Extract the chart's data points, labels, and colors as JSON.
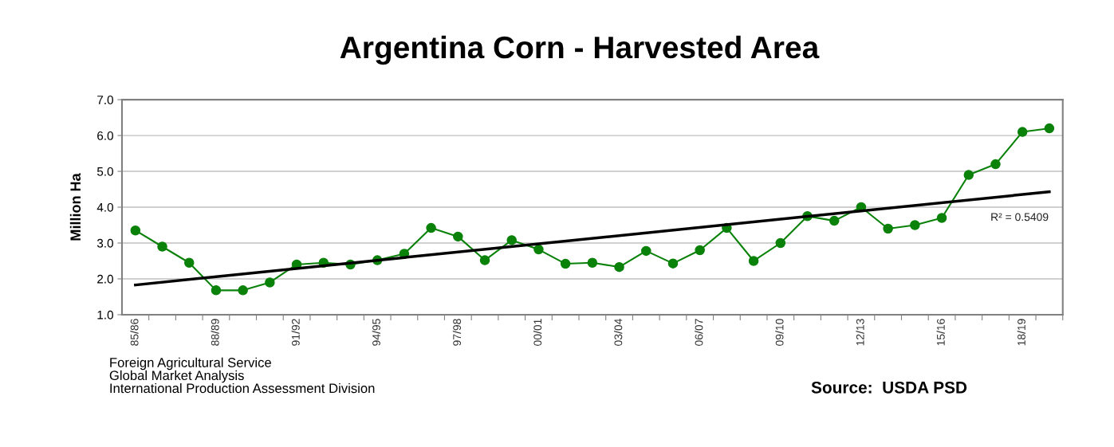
{
  "chart_data": {
    "type": "line",
    "title": "Argentina Corn - Harvested Area",
    "ylabel": "Million Ha",
    "categories": [
      "85/86",
      null,
      null,
      "88/89",
      null,
      null,
      "91/92",
      null,
      null,
      "94/95",
      null,
      null,
      "97/98",
      null,
      null,
      "00/01",
      null,
      null,
      "03/04",
      null,
      null,
      "06/07",
      null,
      null,
      "09/10",
      null,
      null,
      "12/13",
      null,
      null,
      "15/16",
      null,
      null,
      "18/19",
      null
    ],
    "series": [
      {
        "color": "#0a820a",
        "marker": "circle",
        "values": [
          3.35,
          2.9,
          2.45,
          1.68,
          1.68,
          1.9,
          2.4,
          2.45,
          2.4,
          2.52,
          2.7,
          3.42,
          3.18,
          2.52,
          3.08,
          2.82,
          2.42,
          2.45,
          2.33,
          2.78,
          2.43,
          2.8,
          3.42,
          2.5,
          3.0,
          3.75,
          3.62,
          4.0,
          3.4,
          3.5,
          3.7,
          4.9,
          5.2,
          6.1,
          6.2
        ]
      },
      {
        "color": "#000000",
        "marker": "none",
        "values": [
          1.83,
          null,
          null,
          null,
          null,
          null,
          null,
          null,
          null,
          null,
          null,
          null,
          null,
          null,
          null,
          null,
          null,
          null,
          null,
          null,
          null,
          null,
          null,
          null,
          null,
          null,
          null,
          null,
          null,
          null,
          null,
          null,
          null,
          null,
          4.43
        ]
      }
    ],
    "ylim": [
      1.0,
      7.0
    ],
    "yticks": [
      {
        "value": 1,
        "label": "1.0"
      },
      {
        "value": 2,
        "label": "2.0"
      },
      {
        "value": 3,
        "label": "3.0"
      },
      {
        "value": 4,
        "label": "4.0"
      },
      {
        "value": 5,
        "label": "5.0"
      },
      {
        "value": 6,
        "label": "6.0"
      },
      {
        "value": 7,
        "label": "7.0"
      }
    ],
    "grid": "y",
    "legend": false,
    "annotations": [
      "R² = 0.5409",
      "Foreign Agricultural Service\nGlobal Market Analysis\nInternational Production Assessment Division",
      "Source:  USDA PSD"
    ]
  }
}
